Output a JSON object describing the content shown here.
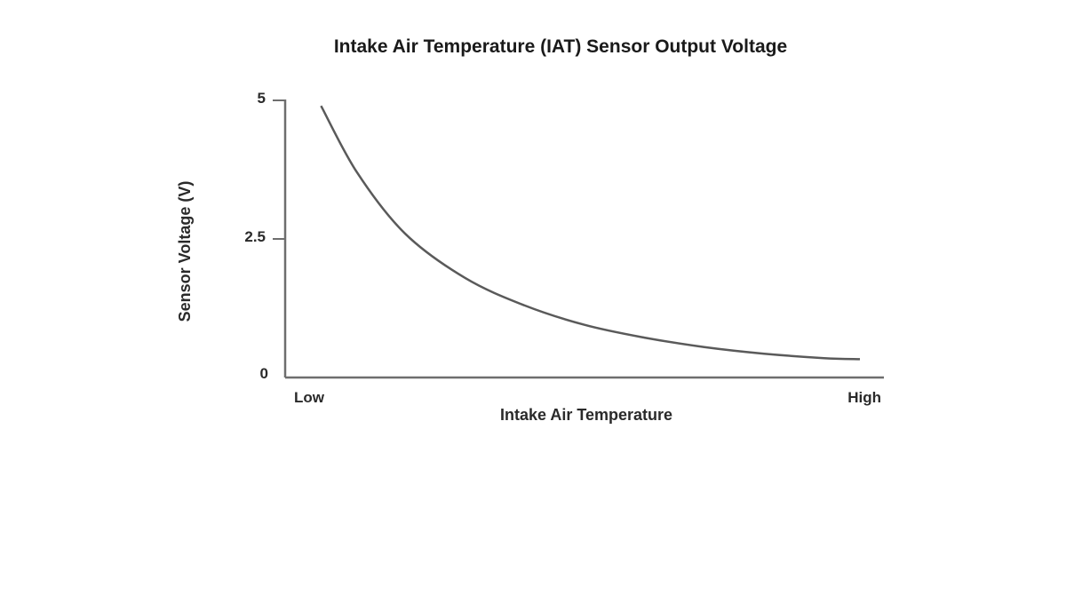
{
  "chart_data": {
    "type": "line",
    "title": "Intake Air Temperature (IAT) Sensor Output Voltage",
    "xlabel": "Intake Air Temperature",
    "ylabel": "Sensor Voltage (V)",
    "x_tick_labels": [
      "Low",
      "High"
    ],
    "y_ticks": [
      {
        "value": 0,
        "label": "0"
      },
      {
        "value": 2.5,
        "label": "2.5"
      },
      {
        "value": 5,
        "label": "5"
      }
    ],
    "ylim": [
      0,
      5
    ],
    "xlim": [
      0,
      1
    ],
    "grid": false,
    "legend": "none",
    "series": [
      {
        "color": "#5a5a5a",
        "x": [
          0.06,
          0.12,
          0.2,
          0.3,
          0.4,
          0.5,
          0.6,
          0.7,
          0.8,
          0.9,
          0.96
        ],
        "y": [
          4.9,
          3.7,
          2.6,
          1.8,
          1.3,
          0.95,
          0.72,
          0.55,
          0.43,
          0.35,
          0.33
        ]
      }
    ]
  }
}
